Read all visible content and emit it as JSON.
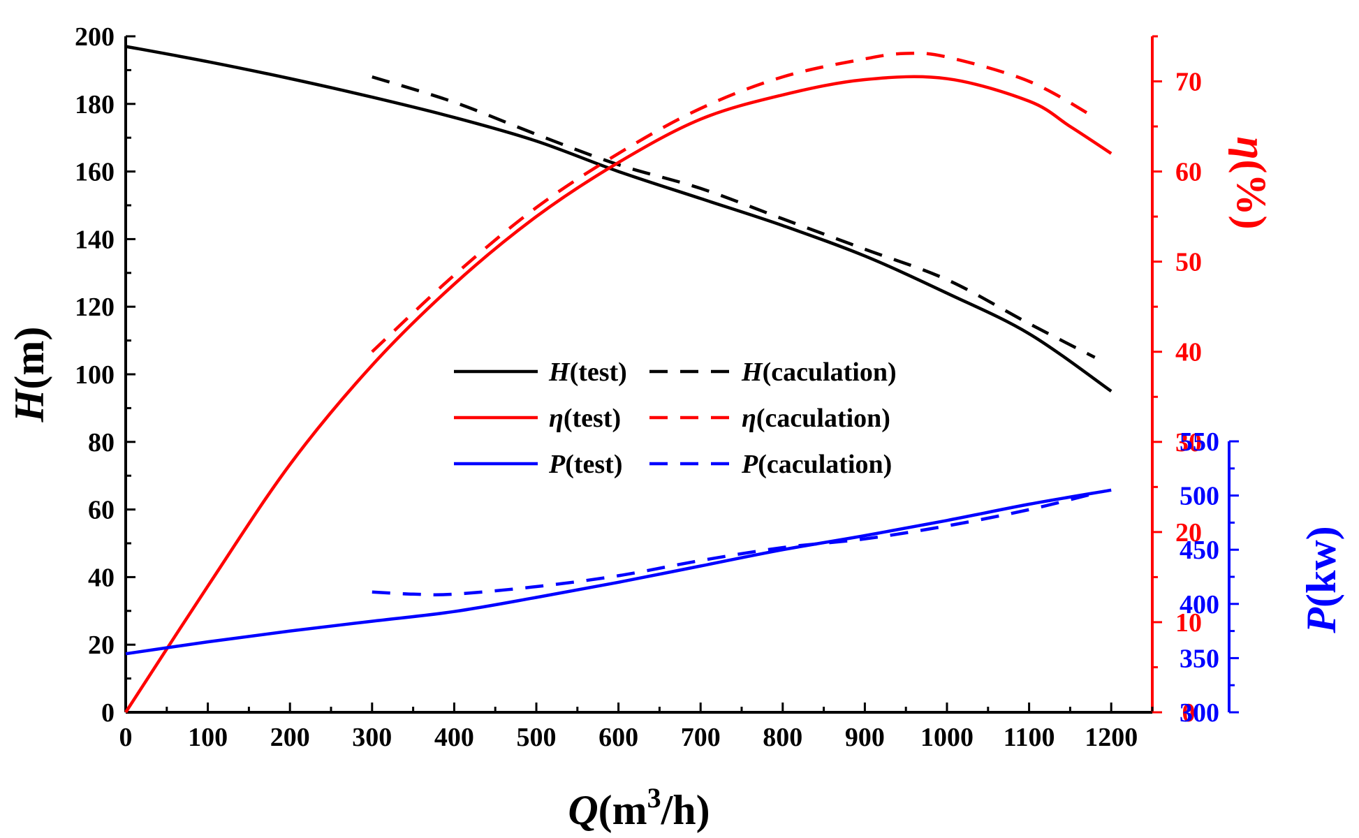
{
  "chart_data": {
    "type": "line",
    "title": "",
    "x_axis": {
      "label_var": "Q",
      "label_unit_pre": "(m",
      "label_sup": "3",
      "label_unit_post": "/h)",
      "range": [
        0,
        1250
      ],
      "ticks": [
        "0",
        "100",
        "200",
        "300",
        "400",
        "500",
        "600",
        "700",
        "800",
        "900",
        "1000",
        "1100",
        "1200"
      ],
      "tick_values": [
        0,
        100,
        200,
        300,
        400,
        500,
        600,
        700,
        800,
        900,
        1000,
        1100,
        1200
      ],
      "minor_step": 50
    },
    "y_axis_left": {
      "label_var": "H",
      "label_unit": "(m)",
      "range": [
        0,
        200
      ],
      "ticks": [
        "0",
        "20",
        "40",
        "60",
        "80",
        "100",
        "120",
        "140",
        "160",
        "180",
        "200"
      ],
      "tick_values": [
        0,
        20,
        40,
        60,
        80,
        100,
        120,
        140,
        160,
        180,
        200
      ],
      "minor_step": 10,
      "color": "#000000"
    },
    "y_axis_right_eta": {
      "label_var": "η",
      "label_unit": "(%)",
      "range": [
        0,
        75
      ],
      "ticks": [
        "0",
        "10",
        "20",
        "30",
        "40",
        "50",
        "60",
        "70"
      ],
      "tick_values": [
        0,
        10,
        20,
        30,
        40,
        50,
        60,
        70
      ],
      "minor_step": 5,
      "color": "#ff0000"
    },
    "y_axis_right_p": {
      "label_var": "P",
      "label_unit": "(kw)",
      "range": [
        300,
        550
      ],
      "ticks": [
        "300",
        "350",
        "400",
        "450",
        "500",
        "550"
      ],
      "tick_values": [
        300,
        350,
        400,
        450,
        500,
        550
      ],
      "minor_step": 25,
      "color": "#0000ff"
    },
    "series": [
      {
        "name": "H(test)",
        "label_var": "H",
        "label_rest": "(test)",
        "axis": "left",
        "color": "#000000",
        "dashed": false,
        "x": [
          0,
          100,
          200,
          300,
          400,
          500,
          600,
          700,
          800,
          900,
          1000,
          1100,
          1200
        ],
        "y": [
          197,
          192.5,
          187.5,
          182,
          176,
          169,
          160,
          152,
          144,
          135,
          124,
          112,
          95
        ]
      },
      {
        "name": "H(caculation)",
        "label_var": "H",
        "label_rest": "(caculation)",
        "axis": "left",
        "color": "#000000",
        "dashed": true,
        "x": [
          300,
          400,
          500,
          600,
          700,
          800,
          900,
          1000,
          1100,
          1180
        ],
        "y": [
          188,
          180.5,
          171,
          162,
          155,
          146,
          137,
          128,
          115,
          105
        ]
      },
      {
        "name": "η(test)",
        "label_var": "η",
        "label_rest": "(test)",
        "axis": "eta",
        "color": "#ff0000",
        "dashed": false,
        "x": [
          0,
          100,
          200,
          300,
          400,
          500,
          600,
          700,
          800,
          900,
          1000,
          1100,
          1150,
          1200
        ],
        "y": [
          0,
          14,
          27.5,
          38.5,
          47.5,
          55,
          61,
          65.8,
          68.5,
          70.2,
          70.3,
          67.8,
          65,
          62
        ]
      },
      {
        "name": "η(caculation)",
        "label_var": "η",
        "label_rest": "(caculation)",
        "axis": "eta",
        "color": "#ff0000",
        "dashed": true,
        "x": [
          300,
          400,
          500,
          600,
          700,
          800,
          900,
          950,
          1000,
          1100,
          1180
        ],
        "y": [
          40,
          48.5,
          56,
          62,
          67,
          70.5,
          72.5,
          73.1,
          72.7,
          70,
          66
        ]
      },
      {
        "name": "P(test)",
        "label_var": "P",
        "label_rest": "(test)",
        "axis": "p",
        "color": "#0000ff",
        "dashed": false,
        "x": [
          0,
          100,
          200,
          300,
          400,
          500,
          600,
          700,
          800,
          900,
          1000,
          1100,
          1200
        ],
        "y": [
          354,
          365,
          375,
          384,
          393,
          406,
          420,
          435,
          450,
          463,
          477,
          492,
          505
        ]
      },
      {
        "name": "P(caculation)",
        "label_var": "P",
        "label_rest": "(caculation)",
        "axis": "p",
        "color": "#0000ff",
        "dashed": true,
        "x": [
          300,
          350,
          400,
          500,
          600,
          700,
          800,
          900,
          1000,
          1100,
          1180
        ],
        "y": [
          411,
          409,
          409,
          416,
          426,
          440,
          452,
          460,
          472,
          487,
          502
        ]
      }
    ]
  }
}
